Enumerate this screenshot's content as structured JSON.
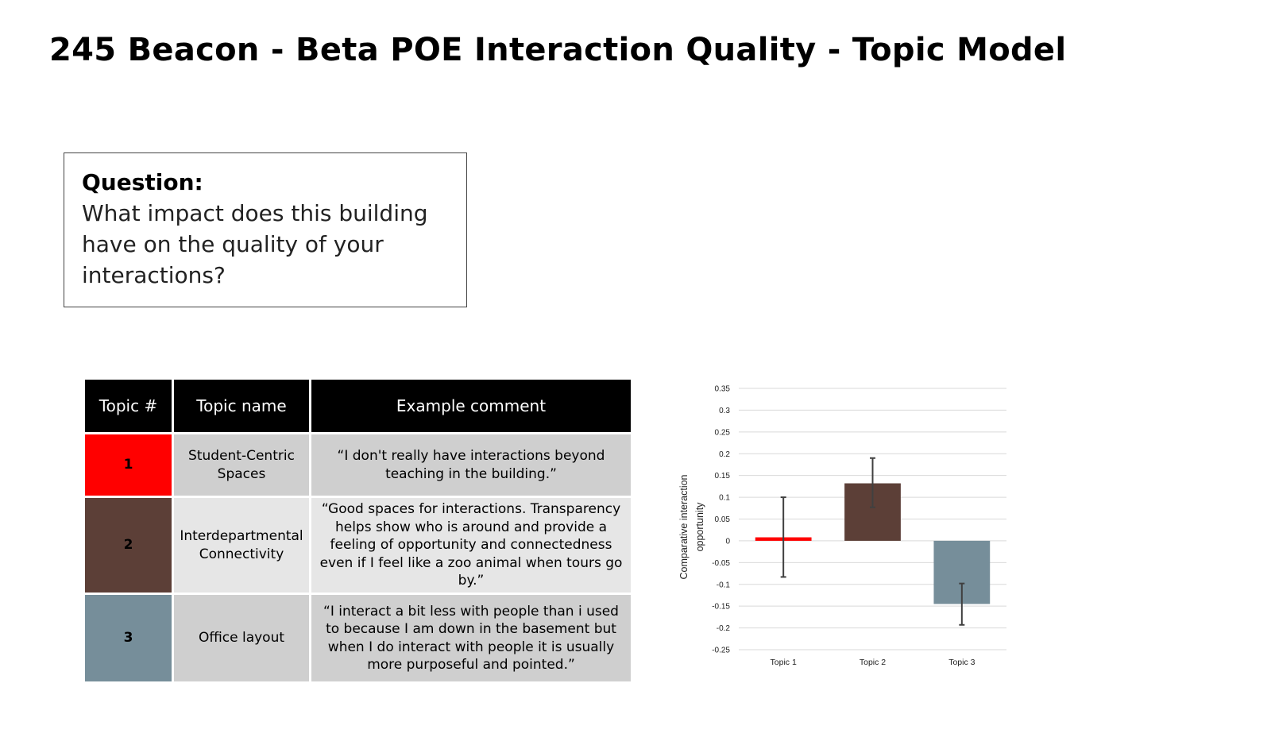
{
  "page": {
    "title": "245 Beacon - Beta POE Interaction Quality - Topic Model"
  },
  "question": {
    "label": "Question:",
    "text": "What impact does this building have on the quality of your interactions?"
  },
  "table": {
    "headers": [
      "Topic #",
      "Topic name",
      "Example comment"
    ],
    "rows": [
      {
        "number": "1",
        "color": "#ff0000",
        "name": "Student-Centric Spaces",
        "comment": "“I don't really have interactions beyond teaching in the building.”"
      },
      {
        "number": "2",
        "color": "#5c3f37",
        "name": "Interdepartmental Connectivity",
        "comment": "“Good spaces for interactions. Transparency helps show who is around and provide a feeling of opportunity and connectedness even if I feel like a zoo animal when tours go by.”"
      },
      {
        "number": "3",
        "color": "#768e9a",
        "name": "Office layout",
        "comment": "“I interact a bit less with people than i used to because I am down in the basement but when I do interact with people it is usually more purposeful and pointed.”"
      }
    ]
  },
  "chart_data": {
    "type": "bar",
    "categories": [
      "Topic 1",
      "Topic 2",
      "Topic 3"
    ],
    "values": [
      0.008,
      0.132,
      -0.145
    ],
    "error_bars": [
      {
        "low": -0.083,
        "high": 0.1
      },
      {
        "low": 0.077,
        "high": 0.19
      },
      {
        "low": -0.193,
        "high": -0.098
      }
    ],
    "colors": [
      "#ff0000",
      "#5c3f37",
      "#768e9a"
    ],
    "ylabel": "Comparative interaction opportunity",
    "ylim": [
      -0.25,
      0.35
    ],
    "yticks": [
      0.35,
      0.3,
      0.25,
      0.2,
      0.15,
      0.1,
      0.05,
      0,
      -0.05,
      -0.1,
      -0.15,
      -0.2,
      -0.25
    ],
    "ytick_labels": [
      "0.35",
      "0.3",
      "0.25",
      "0.2",
      "0.15",
      "0.1",
      "0.05",
      "0",
      "-0.05",
      "-0.1",
      "-0.15",
      "-0.2",
      "-0.25"
    ],
    "grid": true,
    "legend": "none"
  }
}
